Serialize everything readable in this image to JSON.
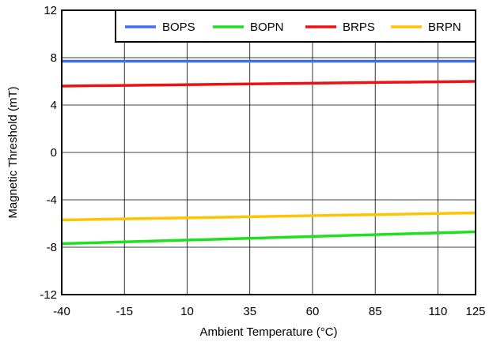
{
  "chart_data": {
    "type": "line",
    "title": "",
    "xlabel": "Ambient Temperature (°C)",
    "ylabel": "Magnetic Threshold (mT)",
    "xlim": [
      -40,
      125
    ],
    "ylim": [
      -12,
      12
    ],
    "xticks": [
      -40,
      -15,
      10,
      35,
      60,
      85,
      110,
      125
    ],
    "yticks": [
      -12,
      -8,
      -4,
      0,
      4,
      8,
      12
    ],
    "grid": true,
    "legend_position": "top-right",
    "series": [
      {
        "name": "BOPS",
        "color": "#3a6fef",
        "x": [
          -40,
          125
        ],
        "y": [
          7.7,
          7.7
        ]
      },
      {
        "name": "BOPN",
        "color": "#1ee01e",
        "x": [
          -40,
          125
        ],
        "y": [
          -7.7,
          -6.7
        ]
      },
      {
        "name": "BRPS",
        "color": "#ee1111",
        "x": [
          -40,
          125
        ],
        "y": [
          5.6,
          6.0
        ]
      },
      {
        "name": "BRPN",
        "color": "#ffc400",
        "x": [
          -40,
          125
        ],
        "y": [
          -5.7,
          -5.1
        ]
      }
    ]
  }
}
